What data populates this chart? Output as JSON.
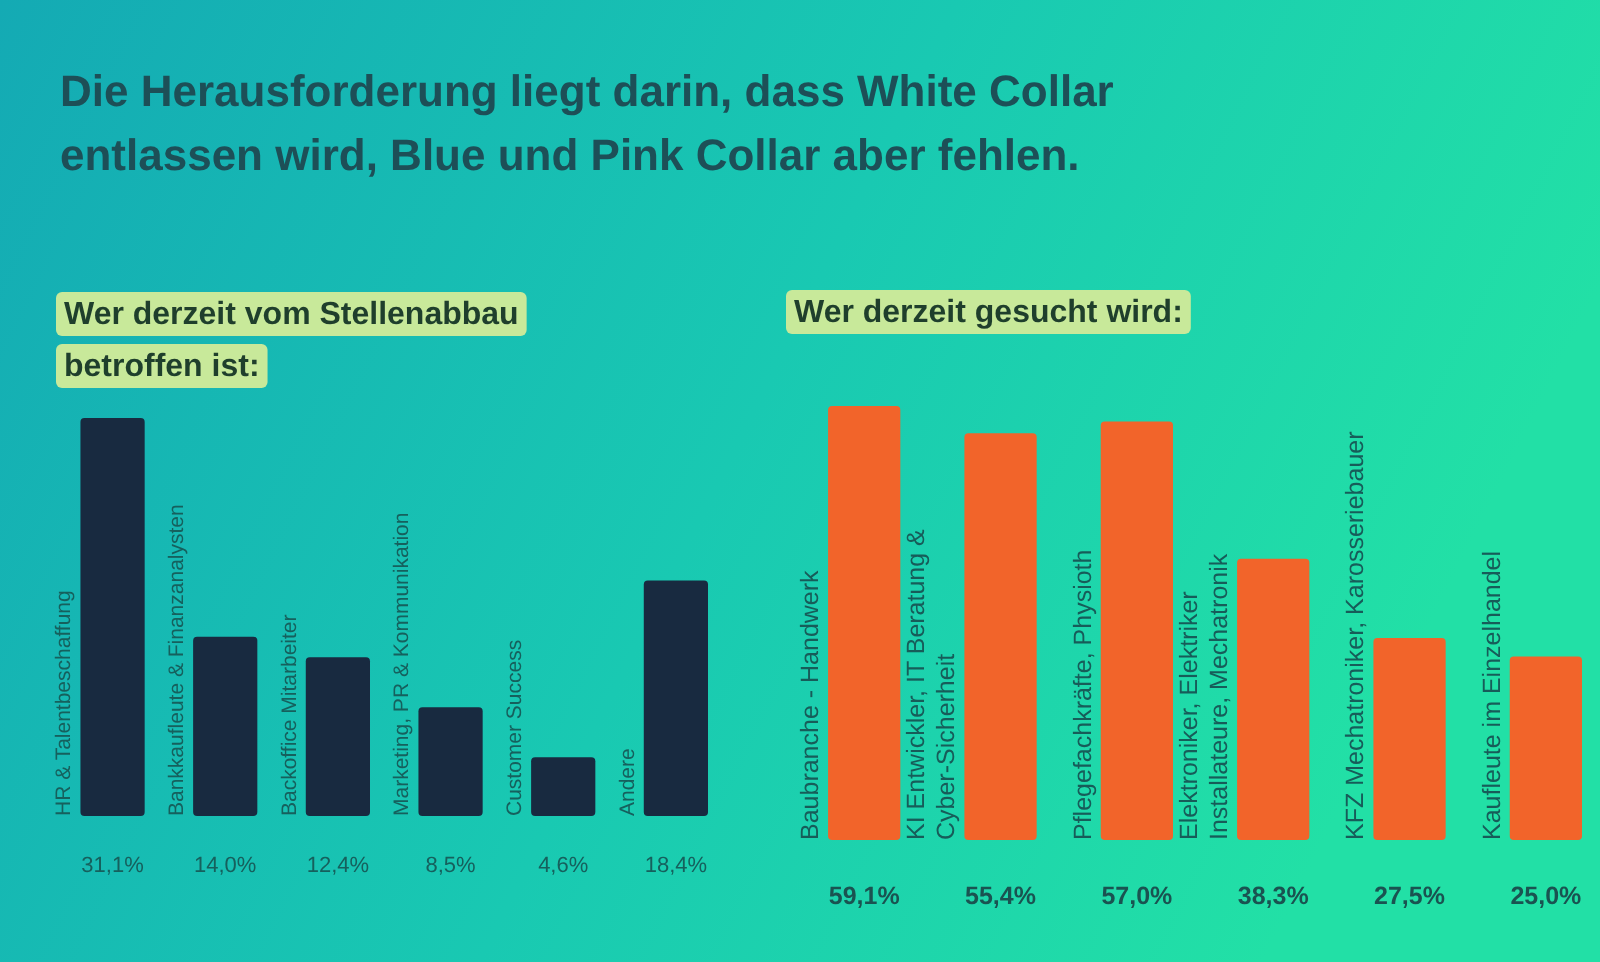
{
  "chart_data": [
    {
      "type": "bar",
      "title": "Die Herausforderung liegt darin, dass White Collar entlassen wird, Blue und Pink Collar aber fehlen.",
      "subtitle": "Wer derzeit vom Stellenabbau betroffen ist:",
      "categories": [
        "HR & Talentbeschaffung",
        "Bankkaufleute & Finanzanalysten",
        "Backoffice Mitarbeiter",
        "Marketing, PR & Kommunikation",
        "Customer Success",
        "Andere"
      ],
      "values": [
        31.1,
        14.0,
        12.4,
        8.5,
        4.6,
        18.4
      ],
      "color": "#182a40",
      "value_labels": [
        "31,1%",
        "14,0%",
        "12,4%",
        "8,5%",
        "4,6%",
        "18,4%"
      ]
    },
    {
      "type": "bar",
      "subtitle": "Wer derzeit gesucht wird:",
      "categories": [
        "Baubranche - Handwerk",
        "KI Entwickler, IT Beratung &\nCyber-Sicherheit",
        "Pflegefachkräfte, Physioth",
        "Elektroniker, Elektriker\nInstallateure, Mechatronik",
        "KFZ Mechatroniker, Karosseriebauer",
        "Kaufleute im Einzelhandel"
      ],
      "values": [
        59.1,
        55.4,
        57.0,
        38.3,
        27.5,
        25.0
      ],
      "color": "#f2642a",
      "value_labels": [
        "59,1%",
        "55,4%",
        "57,0%",
        "38,3%",
        "27,5%",
        "25,0%"
      ]
    }
  ]
}
